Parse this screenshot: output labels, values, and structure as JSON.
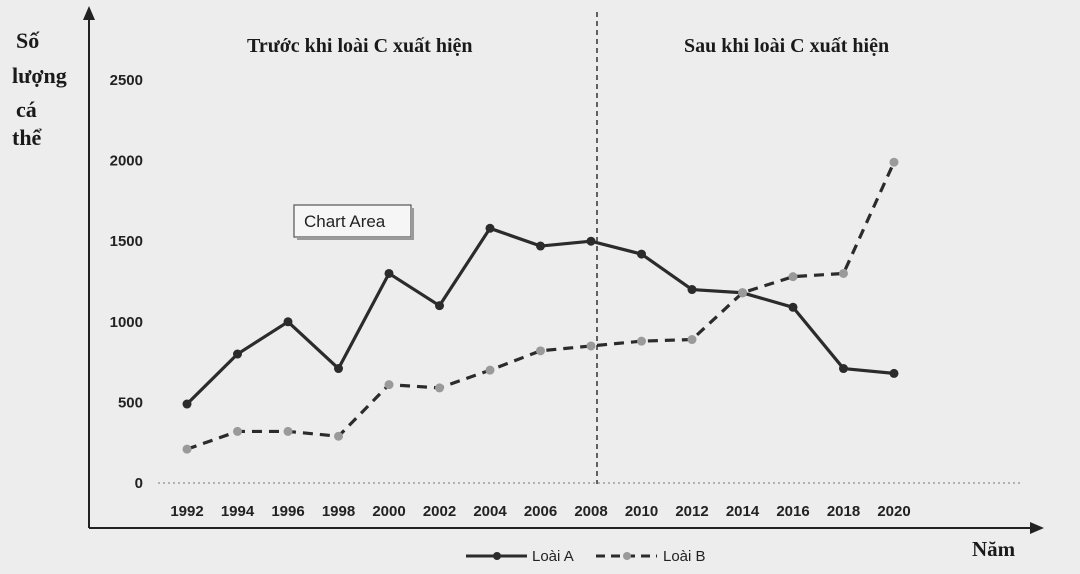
{
  "chart_data": {
    "type": "line",
    "categories": [
      "1992",
      "1994",
      "1996",
      "1998",
      "2000",
      "2002",
      "2004",
      "2006",
      "2008",
      "2010",
      "2012",
      "2014",
      "2016",
      "2018",
      "2020"
    ],
    "series": [
      {
        "name": "Loài A",
        "style": "solid",
        "color": "#2b2b2b",
        "values": [
          490,
          800,
          1000,
          710,
          1300,
          1100,
          1580,
          1470,
          1500,
          1420,
          1200,
          1180,
          1090,
          710,
          680
        ]
      },
      {
        "name": "Loài B",
        "style": "dashed",
        "color": "#2b2b2b",
        "values": [
          210,
          320,
          320,
          290,
          610,
          590,
          700,
          820,
          850,
          880,
          890,
          1180,
          1280,
          1300,
          1990
        ]
      }
    ],
    "ylabel": "Số lượng cá thể",
    "ylabel_lines": [
      "Số",
      "lượng",
      "cá",
      "thể"
    ],
    "xlabel": "Năm",
    "yticks": [
      "0",
      "500",
      "1000",
      "1500",
      "2000",
      "2500"
    ],
    "ylim": [
      0,
      2500
    ],
    "divider_at": "2008",
    "annotations": {
      "before": "Trước khi loài C xuất hiện",
      "after": "Sau khi loài C xuất hiện",
      "chart_area": "Chart Area"
    },
    "legend_position": "bottom-center",
    "grid": false
  }
}
